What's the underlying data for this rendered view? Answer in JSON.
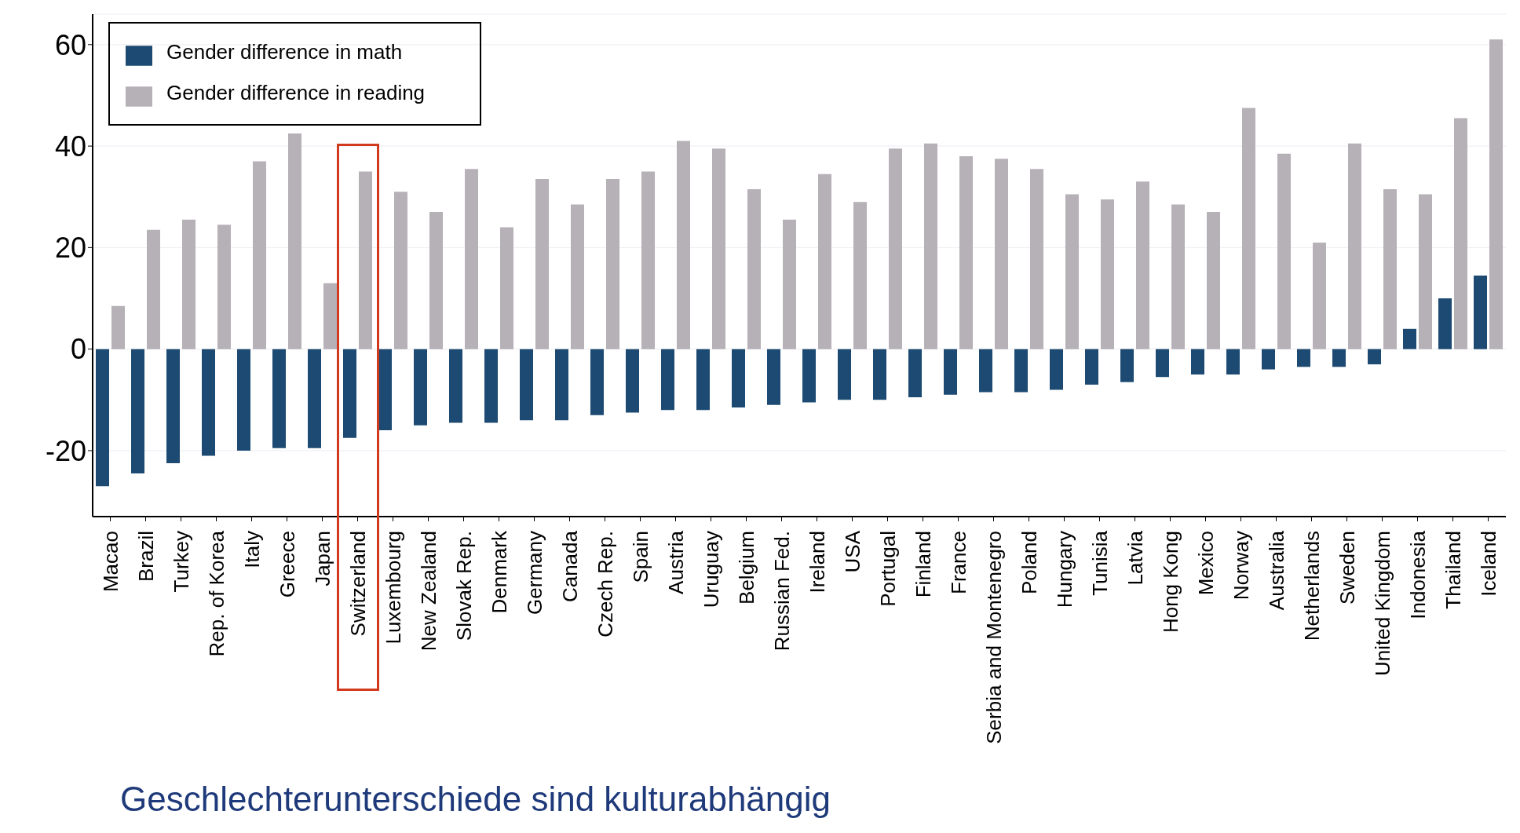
{
  "chart_data": {
    "type": "bar",
    "categories": [
      "Macao",
      "Brazil",
      "Turkey",
      "Rep. of Korea",
      "Italy",
      "Greece",
      "Japan",
      "Switzerland",
      "Luxembourg",
      "New Zealand",
      "Slovak Rep.",
      "Denmark",
      "Germany",
      "Canada",
      "Czech Rep.",
      "Spain",
      "Austria",
      "Uruguay",
      "Belgium",
      "Russian Fed.",
      "Ireland",
      "USA",
      "Portugal",
      "Finland",
      "France",
      "Serbia and Montenegro",
      "Poland",
      "Hungary",
      "Tunisia",
      "Latvia",
      "Hong Kong",
      "Mexico",
      "Norway",
      "Australia",
      "Netherlands",
      "Sweden",
      "United Kingdom",
      "Indonesia",
      "Thailand",
      "Iceland"
    ],
    "series": [
      {
        "name": "Gender difference in math",
        "color": "#1d4a72",
        "values": [
          -27,
          -24.5,
          -22.5,
          -21,
          -20,
          -19.5,
          -19.5,
          -17.5,
          -16,
          -15,
          -14.5,
          -14.5,
          -14,
          -14,
          -13,
          -12.5,
          -12,
          -12,
          -11.5,
          -11,
          -10.5,
          -10,
          -10,
          -9.5,
          -9,
          -8.5,
          -8.5,
          -8,
          -7,
          -6.5,
          -5.5,
          -5,
          -5,
          -4,
          -3.5,
          -3.5,
          -3,
          4,
          10,
          14.5
        ]
      },
      {
        "name": "Gender difference in reading",
        "color": "#b6b0b7",
        "values": [
          8.5,
          23.5,
          25.5,
          24.5,
          37,
          42.5,
          13,
          35,
          31,
          27,
          35.5,
          24,
          33.5,
          28.5,
          33.5,
          35,
          41,
          39.5,
          31.5,
          25.5,
          34.5,
          29,
          39.5,
          40.5,
          38,
          37.5,
          35.5,
          30.5,
          29.5,
          33,
          28.5,
          27,
          47.5,
          38.5,
          21,
          40.5,
          31.5,
          30.5,
          45.5,
          61
        ]
      }
    ],
    "ylim": [
      -33,
      66
    ],
    "yticks": [
      -20,
      0,
      20,
      40,
      60
    ],
    "grid": "y",
    "legend": "top left",
    "annotations": [
      "Geschlechterunterschiede sind kulturabhängig"
    ]
  }
}
